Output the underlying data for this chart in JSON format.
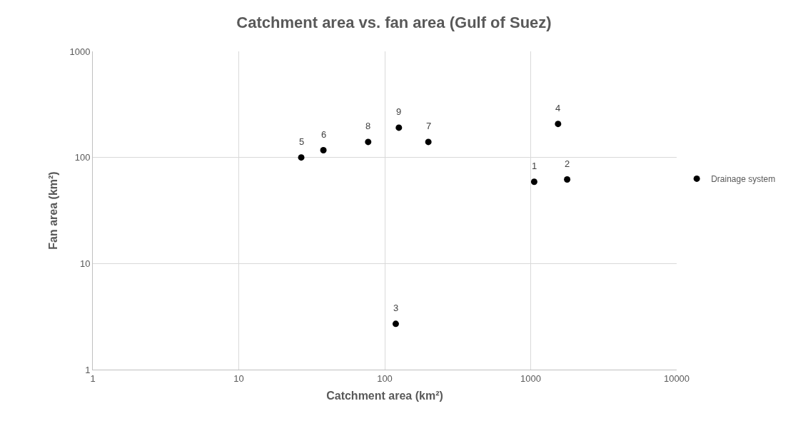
{
  "chart_data": {
    "type": "scatter",
    "title": "Catchment area vs. fan area (Gulf of Suez)",
    "xlabel": "Catchment area (km²)",
    "ylabel": "Fan area (km²)",
    "log": "xy",
    "xlim": [
      1,
      10000
    ],
    "ylim": [
      1,
      1000
    ],
    "xticks": [
      1,
      10,
      100,
      1000,
      10000
    ],
    "yticks": [
      1,
      10,
      100,
      1000
    ],
    "grid": true,
    "legend": "right",
    "marker": "circle",
    "series": [
      {
        "name": "Drainage system",
        "color": "#000000",
        "x": [
          1057,
          1778,
          119,
          1540,
          26.8,
          38,
          199,
          77,
          125
        ],
        "values": [
          59,
          62,
          2.7,
          207,
          100,
          117,
          140,
          140,
          191
        ]
      }
    ],
    "annotations": [
      {
        "text": "1",
        "x": 1057,
        "y": 59
      },
      {
        "text": "2",
        "x": 1778,
        "y": 62
      },
      {
        "text": "3",
        "x": 119,
        "y": 2.7
      },
      {
        "text": "4",
        "x": 1540,
        "y": 207
      },
      {
        "text": "5",
        "x": 26.8,
        "y": 100
      },
      {
        "text": "6",
        "x": 38,
        "y": 117
      },
      {
        "text": "7",
        "x": 199,
        "y": 140
      },
      {
        "text": "8",
        "x": 77,
        "y": 140
      },
      {
        "text": "9",
        "x": 125,
        "y": 191
      }
    ]
  }
}
